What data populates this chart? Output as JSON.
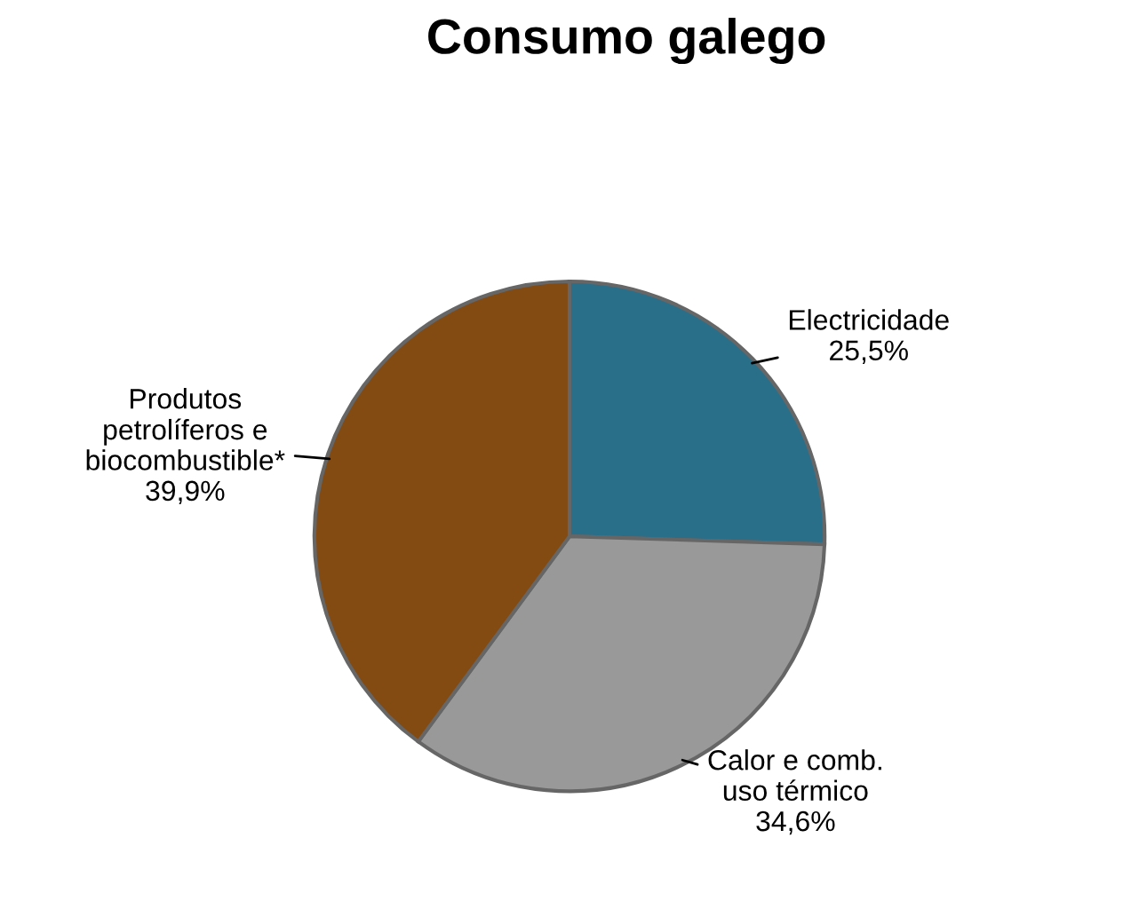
{
  "chart_data": {
    "type": "pie",
    "title": "Consumo galego",
    "categories": [
      "Electricidade",
      "Calor e comb.\nuso térmico",
      "Produtos\npetrolíferos e\nbiocombustible*"
    ],
    "values": [
      25.5,
      34.6,
      39.9
    ],
    "value_labels": [
      "25,5%",
      "34,6%",
      "39,9%"
    ],
    "colors": [
      "#2a6f8a",
      "#999999",
      "#834a12"
    ]
  }
}
